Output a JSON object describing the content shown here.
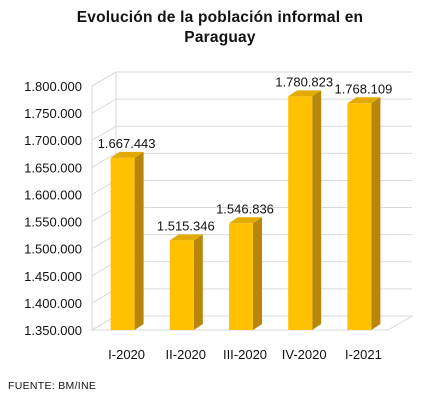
{
  "header": {
    "title": "Evolución  de la población informal  en Paraguay"
  },
  "footer": {
    "source": "FUENTE: BM/INE"
  },
  "colors": {
    "bar_front": "#FFC000",
    "bar_side": "#B8860B",
    "bar_top": "#E3AB00",
    "grid": "#d9d9d9"
  },
  "chart_data": {
    "type": "bar",
    "title": "Evolución  de la población informal  en Paraguay",
    "xlabel": "",
    "ylabel": "",
    "categories": [
      "I-2020",
      "II-2020",
      "III-2020",
      "IV-2020",
      "I-2021"
    ],
    "values": [
      1667443,
      1515346,
      1546836,
      1780823,
      1768109
    ],
    "value_labels": [
      "1.667.443",
      "1.515.346",
      "1.546.836",
      "1.780.823",
      "1.768.109"
    ],
    "ylim": [
      1350000,
      1800000
    ],
    "yticks": [
      1350000,
      1400000,
      1450000,
      1500000,
      1550000,
      1600000,
      1650000,
      1700000,
      1750000,
      1800000
    ],
    "ytick_labels": [
      "1.350.000",
      "1.400.000",
      "1.450.000",
      "1.500.000",
      "1.550.000",
      "1.600.000",
      "1.650.000",
      "1.700.000",
      "1.750.000",
      "1.800.000"
    ],
    "grid": true,
    "style": "3d"
  }
}
